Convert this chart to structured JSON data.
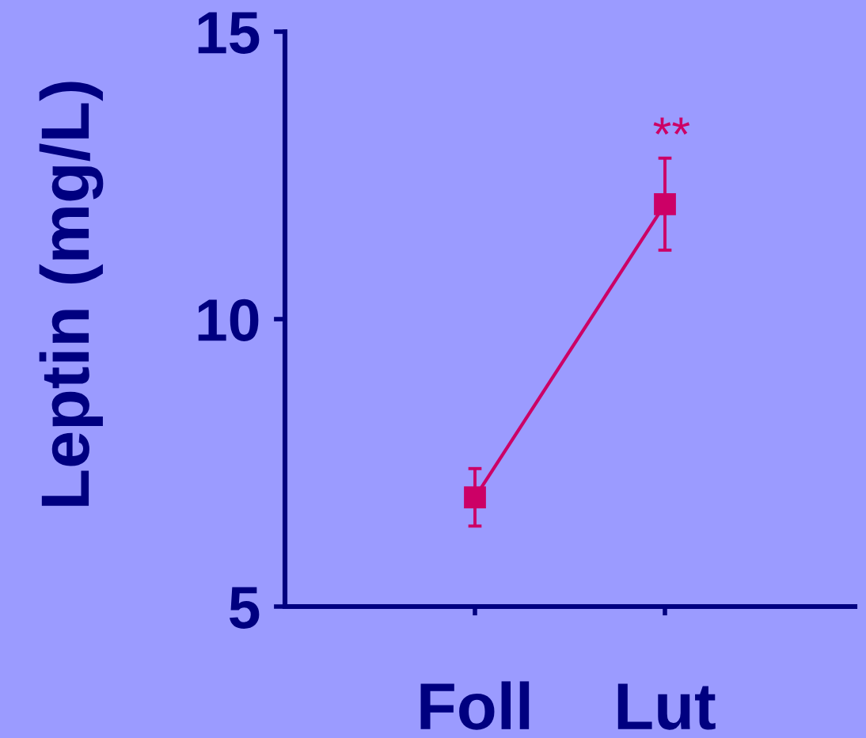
{
  "chart_data": {
    "type": "line",
    "ylabel": "Leptin (mg/L)",
    "categories": [
      "Foll",
      "Lut"
    ],
    "series": [
      {
        "color": "#cc0066",
        "values": [
          6.9,
          12.0
        ],
        "errors": [
          0.5,
          0.8
        ]
      }
    ],
    "ylim": [
      5,
      15
    ],
    "yticks": [
      5,
      10,
      15
    ],
    "marker": "square",
    "line_style": "solid",
    "annotations": [
      "**"
    ]
  }
}
